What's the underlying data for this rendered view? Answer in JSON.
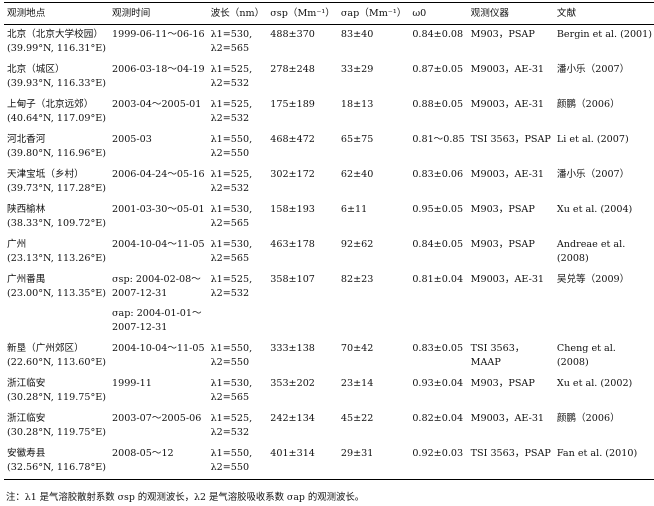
{
  "headers": [
    "观测地点",
    "观测时间",
    "波长（nm）",
    "σsp（Mm⁻¹）",
    "σap（Mm⁻¹）",
    "ω0",
    "观测仪器",
    "文献"
  ],
  "rows": [
    {
      "site": "北京（北京大学校园）",
      "coord": "(39.99°N, 116.31°E)",
      "time": "1999-06-11～06-16",
      "wl1": "λ1=530,",
      "wl2": "λ2=565",
      "sp": "488±370",
      "ap": "83±40",
      "w0": "0.84±0.08",
      "inst": "M903，PSAP",
      "ref": "Bergin et al. (2001)",
      "ref2": ""
    },
    {
      "site": "北京（城区）",
      "coord": "(39.93°N, 116.33°E)",
      "time": "2006-03-18～04-19",
      "wl1": "λ1=525,",
      "wl2": "λ2=532",
      "sp": "278±248",
      "ap": "33±29",
      "w0": "0.87±0.05",
      "inst": "M9003，AE-31",
      "ref": "潘小乐（2007）",
      "ref2": ""
    },
    {
      "site": "上甸子（北京远郊）",
      "coord": "(40.64°N, 117.09°E)",
      "time": "2003-04～2005-01",
      "wl1": "λ1=525,",
      "wl2": "λ2=532",
      "sp": "175±189",
      "ap": "18±13",
      "w0": "0.88±0.05",
      "inst": "M9003，AE-31",
      "ref": "颜鹏（2006）",
      "ref2": ""
    },
    {
      "site": "河北香河",
      "coord": "(39.80°N, 116.96°E)",
      "time": "2005-03",
      "wl1": "λ1=550,",
      "wl2": "λ2=550",
      "sp": "468±472",
      "ap": "65±75",
      "w0": "0.81～0.85",
      "inst": "TSI 3563，PSAP",
      "ref": "Li et al. (2007)",
      "ref2": ""
    },
    {
      "site": "天津宝坻（乡村）",
      "coord": "(39.73°N, 117.28°E)",
      "time": "2006-04-24～05-16",
      "wl1": "λ1=525,",
      "wl2": "λ2=532",
      "sp": "302±172",
      "ap": "62±40",
      "w0": "0.83±0.06",
      "inst": "M9003，AE-31",
      "ref": "潘小乐（2007）",
      "ref2": ""
    },
    {
      "site": "陕西榆林",
      "coord": "(38.33°N, 109.72°E)",
      "time": "2001-03-30～05-01",
      "wl1": "λ1=530,",
      "wl2": "λ2=565",
      "sp": "158±193",
      "ap": "6±11",
      "w0": "0.95±0.05",
      "inst": "M903，PSAP",
      "ref": "Xu et al. (2004)",
      "ref2": ""
    },
    {
      "site": "广州",
      "coord": "(23.13°N,  113.26°E)",
      "time": "2004-10-04～11-05",
      "wl1": "λ1=530,",
      "wl2": "λ2=565",
      "sp": "463±178",
      "ap": "92±62",
      "w0": "0.84±0.05",
      "inst": "M903，PSAP",
      "ref": "Andreae et al.",
      "ref2": "(2008)"
    },
    {
      "site": "广州番禺",
      "coord": "(23.00°N, 113.35°E)",
      "time": "σsp: 2004-02-08～",
      "time2": "2007-12-31",
      "time3": "σap: 2004-01-01～",
      "time4": "2007-12-31",
      "wl1": "λ1=525,",
      "wl2": "λ2=532",
      "sp": "358±107",
      "ap": "82±23",
      "w0": "0.81±0.04",
      "inst": "M9003，AE-31",
      "ref": "吴兑等（2009）",
      "ref2": ""
    },
    {
      "site": "新垦（广州郊区）",
      "coord": "(22.60°N, 113.60°E)",
      "time": "2004-10-04～11-05",
      "wl1": "λ1=550,",
      "wl2": "λ2=550",
      "sp": "333±138",
      "ap": "70±42",
      "w0": "0.83±0.05",
      "inst": "TSI 3563，",
      "inst2": "MAAP",
      "ref": "Cheng et al.",
      "ref2": "(2008)"
    },
    {
      "site": "浙江临安",
      "coord": "(30.28°N, 119.75°E)",
      "time": "1999-11",
      "wl1": "λ1=530,",
      "wl2": "λ2=565",
      "sp": "353±202",
      "ap": "23±14",
      "w0": "0.93±0.04",
      "inst": "M903，PSAP",
      "ref": "Xu et al. (2002)",
      "ref2": ""
    },
    {
      "site": "浙江临安",
      "coord": "(30.28°N, 119.75°E)",
      "time": "2003-07～2005-06",
      "wl1": "λ1=525,",
      "wl2": "λ2=532",
      "sp": "242±134",
      "ap": "45±22",
      "w0": "0.82±0.04",
      "inst": "M9003，AE-31",
      "ref": "颜鹏（2006）",
      "ref2": ""
    },
    {
      "site": "安徽寿县",
      "coord": "(32.56°N, 116.78°E)",
      "time": "2008-05～12",
      "wl1": "λ1=550,",
      "wl2": "λ2=550",
      "sp": "401±314",
      "ap": "29±31",
      "w0": "0.92±0.03",
      "inst": "TSI 3563，PSAP",
      "ref": "Fan et al. (2010)",
      "ref2": ""
    }
  ],
  "note": "注：λ1 是气溶胶散射系数 σsp 的观测波长，λ2 是气溶胶吸收系数 σap 的观测波长。"
}
